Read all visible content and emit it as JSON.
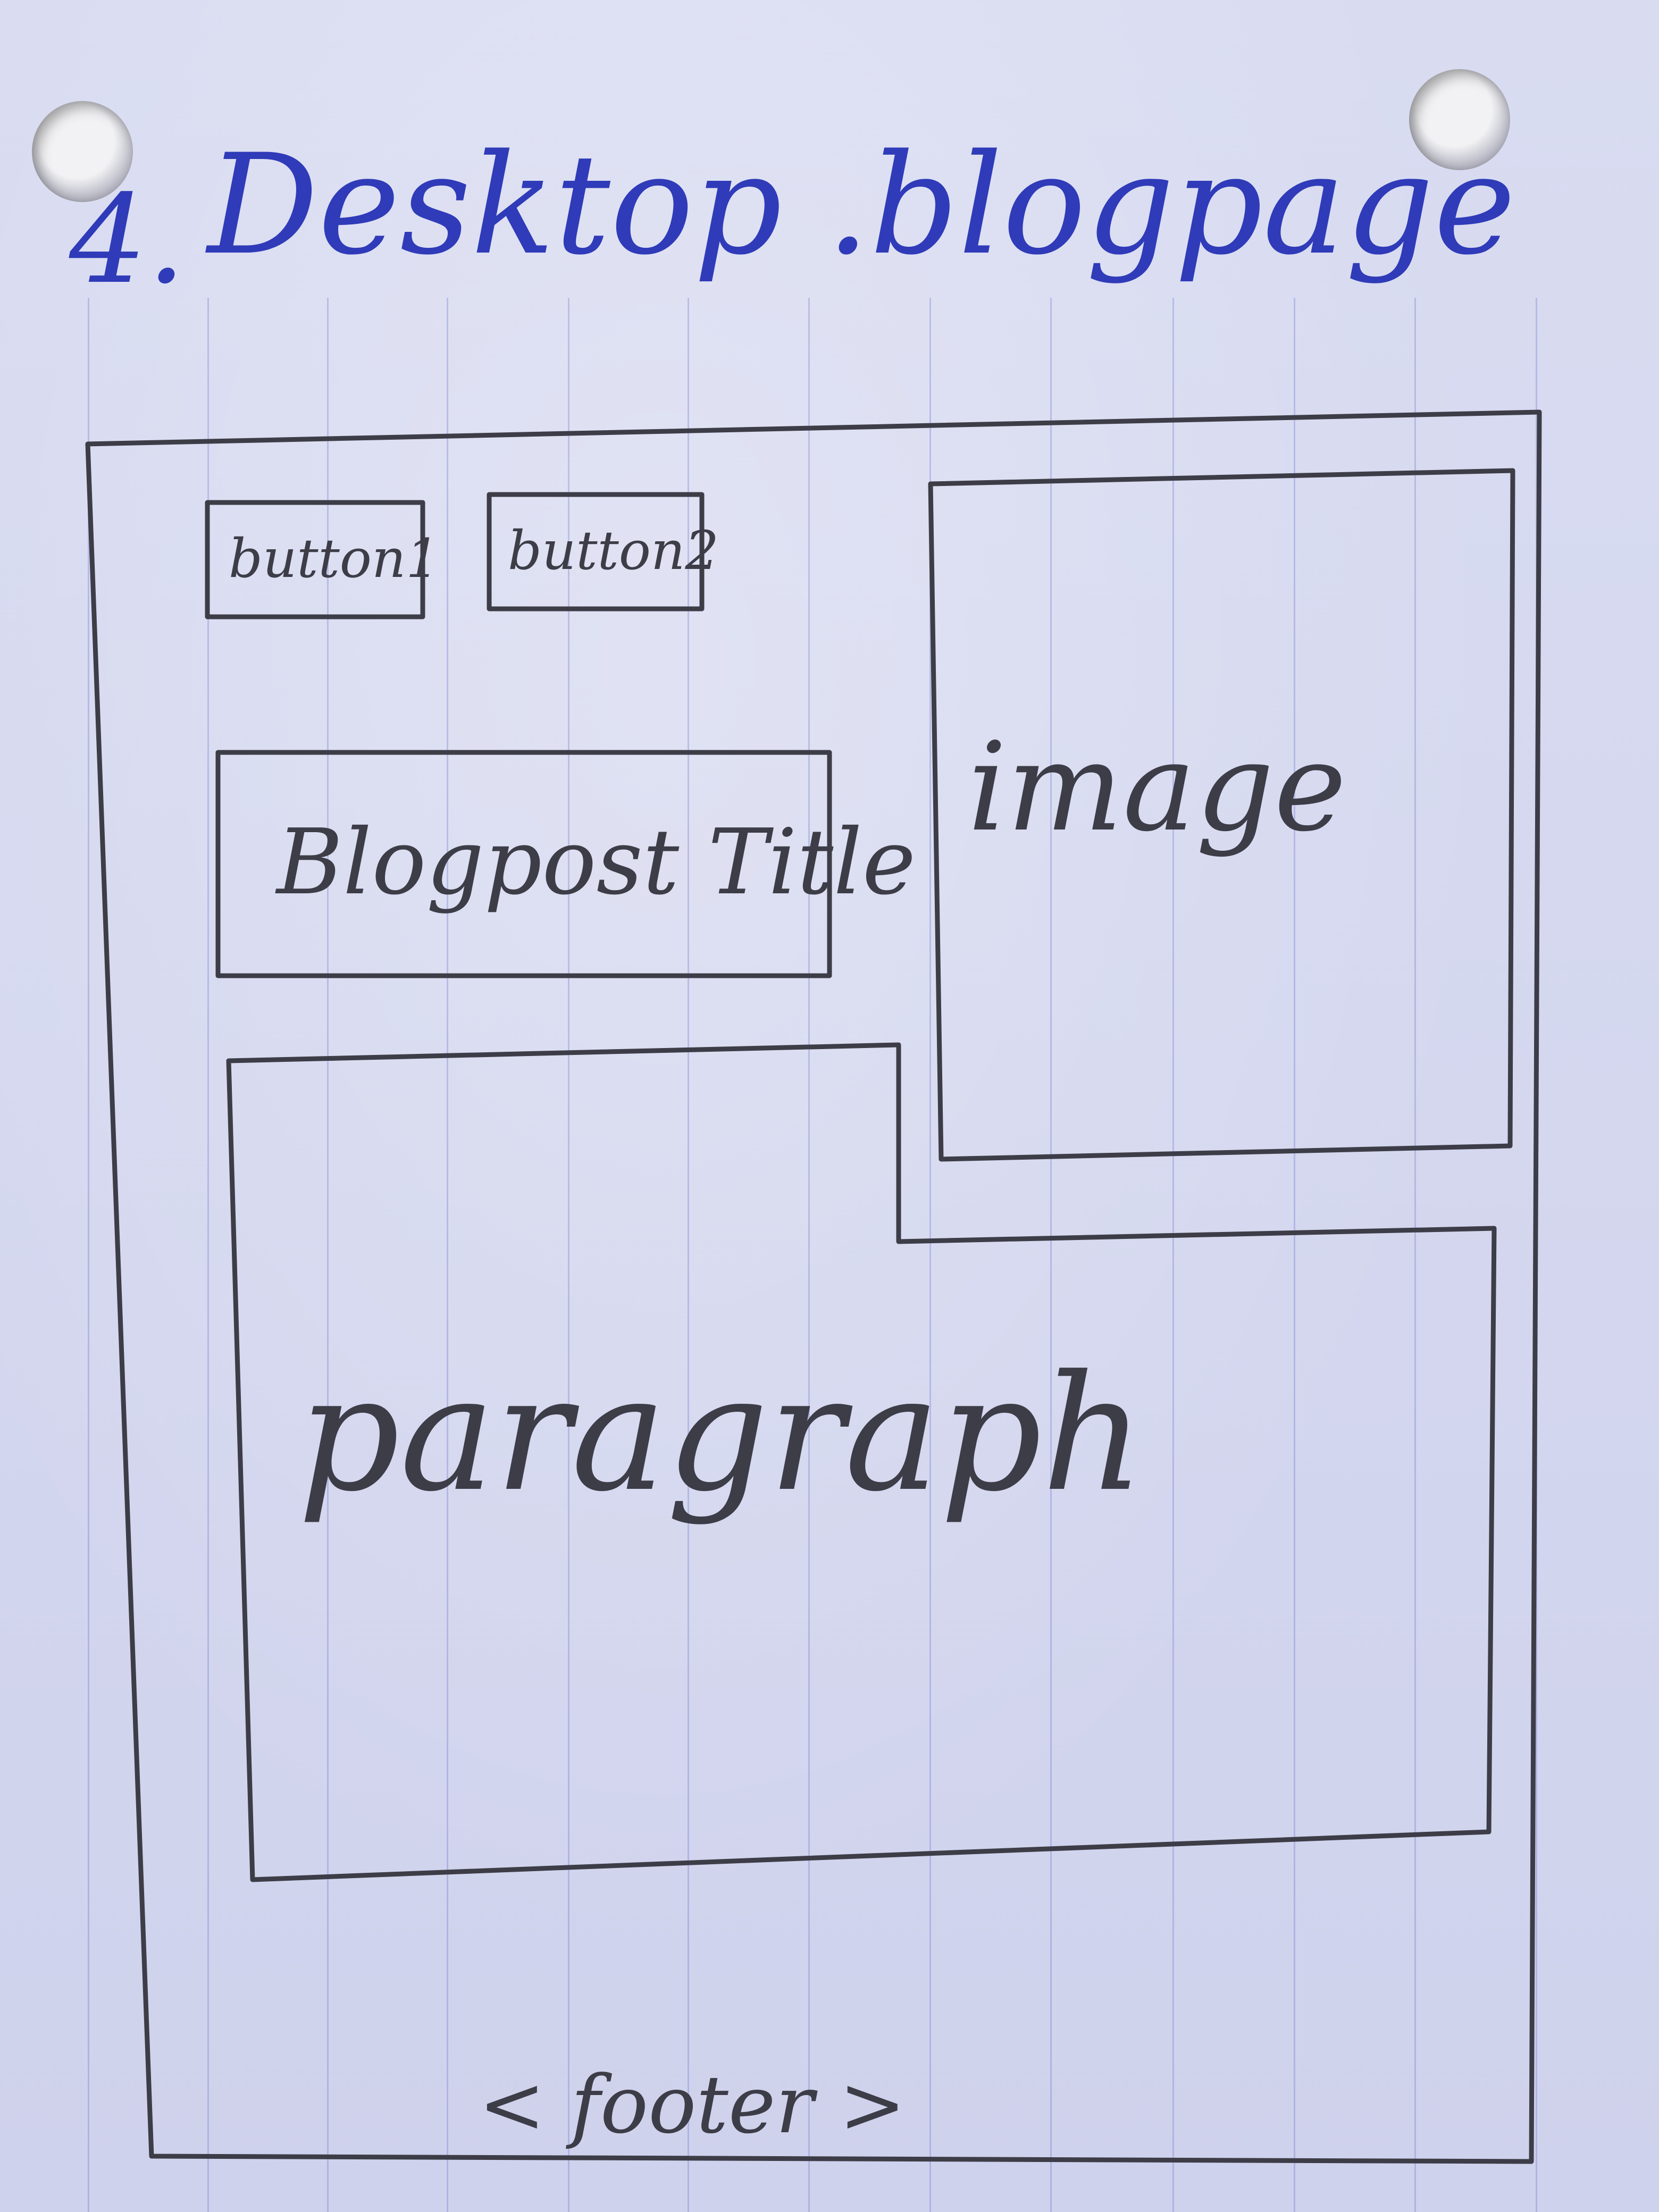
{
  "heading": {
    "number": "4.",
    "title": "Desktop .blogpage"
  },
  "buttons": [
    {
      "label": "button1"
    },
    {
      "label": "button2"
    }
  ],
  "blog_title": "Blogpost Title",
  "image_label": "image",
  "paragraph_label": "paragraph",
  "footer_label": "< footer >",
  "colors": {
    "ink": "#2f3bb8",
    "pencil": "#3d3d48",
    "paper": "#d7d9ee",
    "ruling": "#7f88d0"
  }
}
